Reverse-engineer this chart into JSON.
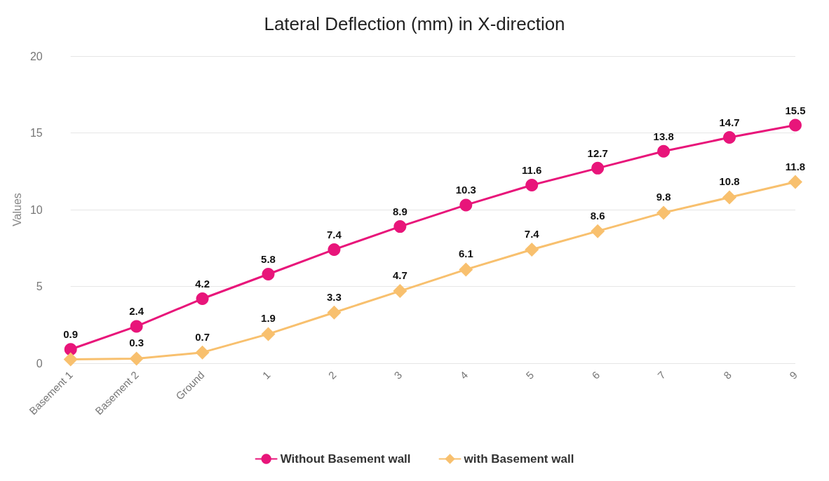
{
  "chart_data": {
    "type": "line",
    "title": "Lateral Deflection (mm) in X-direction",
    "ylabel": "Values",
    "categories": [
      "Basement 1",
      "Basement 2",
      "Ground",
      "1",
      "2",
      "3",
      "4",
      "5",
      "6",
      "7",
      "8",
      "9"
    ],
    "series": [
      {
        "name": "Without Basement wall",
        "color": "#e8157a",
        "marker": "circle",
        "values": [
          0.9,
          2.4,
          4.2,
          5.8,
          7.4,
          8.9,
          10.3,
          11.6,
          12.7,
          13.8,
          14.7,
          15.5
        ],
        "value_labels": [
          "0.9",
          "2.4",
          "4.2",
          "5.8",
          "7.4",
          "8.9",
          "10.3",
          "11.6",
          "12.7",
          "13.8",
          "14.7",
          "15.5"
        ]
      },
      {
        "name": "with Basement wall",
        "color": "#f8c06e",
        "marker": "diamond",
        "values": [
          0.25,
          0.3,
          0.7,
          1.9,
          3.3,
          4.7,
          6.1,
          7.4,
          8.6,
          9.8,
          10.8,
          11.8
        ],
        "value_labels": [
          null,
          "0.3",
          "0.7",
          "1.9",
          "3.3",
          "4.7",
          "6.1",
          "7.4",
          "8.6",
          "9.8",
          "10.8",
          "11.8"
        ]
      }
    ],
    "ylim": [
      0,
      20
    ],
    "yticks": [
      0,
      5,
      10,
      15,
      20
    ],
    "grid": "y",
    "legend": "bottom",
    "line_style": "solid"
  }
}
